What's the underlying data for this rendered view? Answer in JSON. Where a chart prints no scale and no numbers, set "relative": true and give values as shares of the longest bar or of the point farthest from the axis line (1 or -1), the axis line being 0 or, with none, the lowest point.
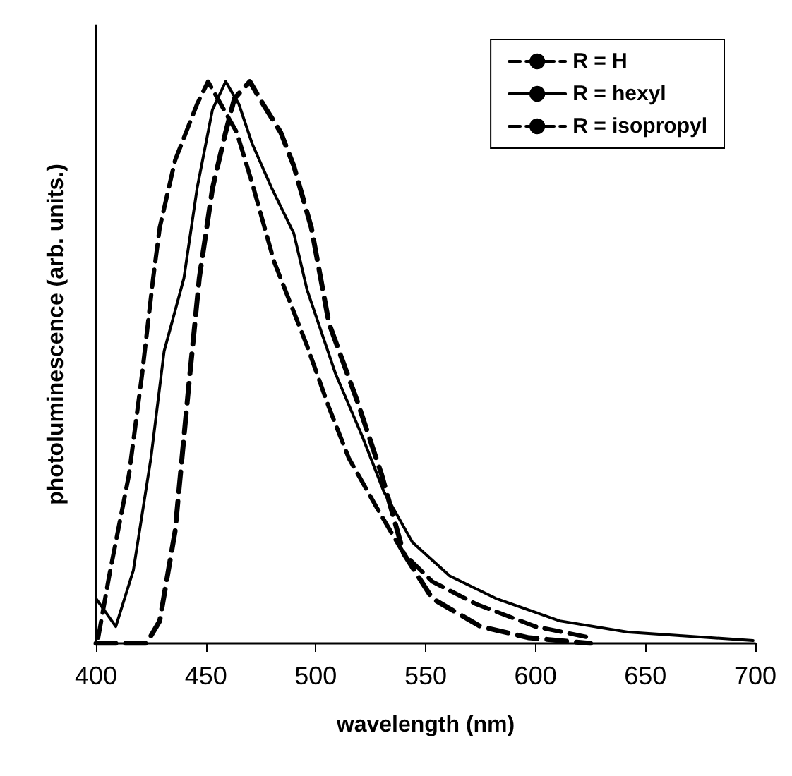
{
  "chart_data": {
    "type": "line",
    "xlabel": "wavelength (nm)",
    "ylabel": "photoluminescence (arb. units.)",
    "relative": true,
    "xlim": [
      400,
      700
    ],
    "xticks": [
      400,
      450,
      500,
      550,
      600,
      650,
      700
    ],
    "grid": false,
    "legend": "top right",
    "marker": "none",
    "series": [
      {
        "name": "R = H",
        "color": "#000000",
        "line_style": "dashed",
        "x": [
          401,
          406,
          415,
          421,
          426,
          429,
          436,
          446,
          451,
          464,
          471,
          481,
          488,
          496,
          506,
          515,
          528,
          540,
          553,
          573,
          600,
          625
        ],
        "values": [
          0.01,
          0.12,
          0.3,
          0.48,
          0.65,
          0.74,
          0.86,
          0.96,
          1.0,
          0.91,
          0.82,
          0.68,
          0.61,
          0.53,
          0.42,
          0.33,
          0.24,
          0.16,
          0.11,
          0.07,
          0.03,
          0.01
        ]
      },
      {
        "name": "R = hexyl",
        "color": "#000000",
        "line_style": "solid",
        "x": [
          400,
          409,
          417,
          425,
          431,
          440,
          446,
          453,
          459,
          465,
          471,
          480,
          490,
          496,
          509,
          521,
          531,
          544,
          561,
          582,
          611,
          642,
          699
        ],
        "values": [
          0.08,
          0.03,
          0.13,
          0.33,
          0.52,
          0.65,
          0.81,
          0.95,
          1.0,
          0.96,
          0.89,
          0.81,
          0.73,
          0.63,
          0.48,
          0.37,
          0.27,
          0.18,
          0.12,
          0.08,
          0.04,
          0.02,
          0.005
        ]
      },
      {
        "name": "R = isopropyl",
        "color": "#000000",
        "line_style": "dashed",
        "x": [
          400,
          423,
          429,
          436,
          442,
          447,
          453,
          459,
          463,
          470,
          476,
          484,
          490,
          498,
          506,
          519,
          530,
          540,
          553,
          575,
          597,
          625
        ],
        "values": [
          0,
          0,
          0.04,
          0.2,
          0.45,
          0.65,
          0.81,
          0.91,
          0.97,
          1.0,
          0.96,
          0.91,
          0.85,
          0.74,
          0.57,
          0.43,
          0.3,
          0.16,
          0.08,
          0.03,
          0.01,
          0
        ]
      }
    ]
  }
}
